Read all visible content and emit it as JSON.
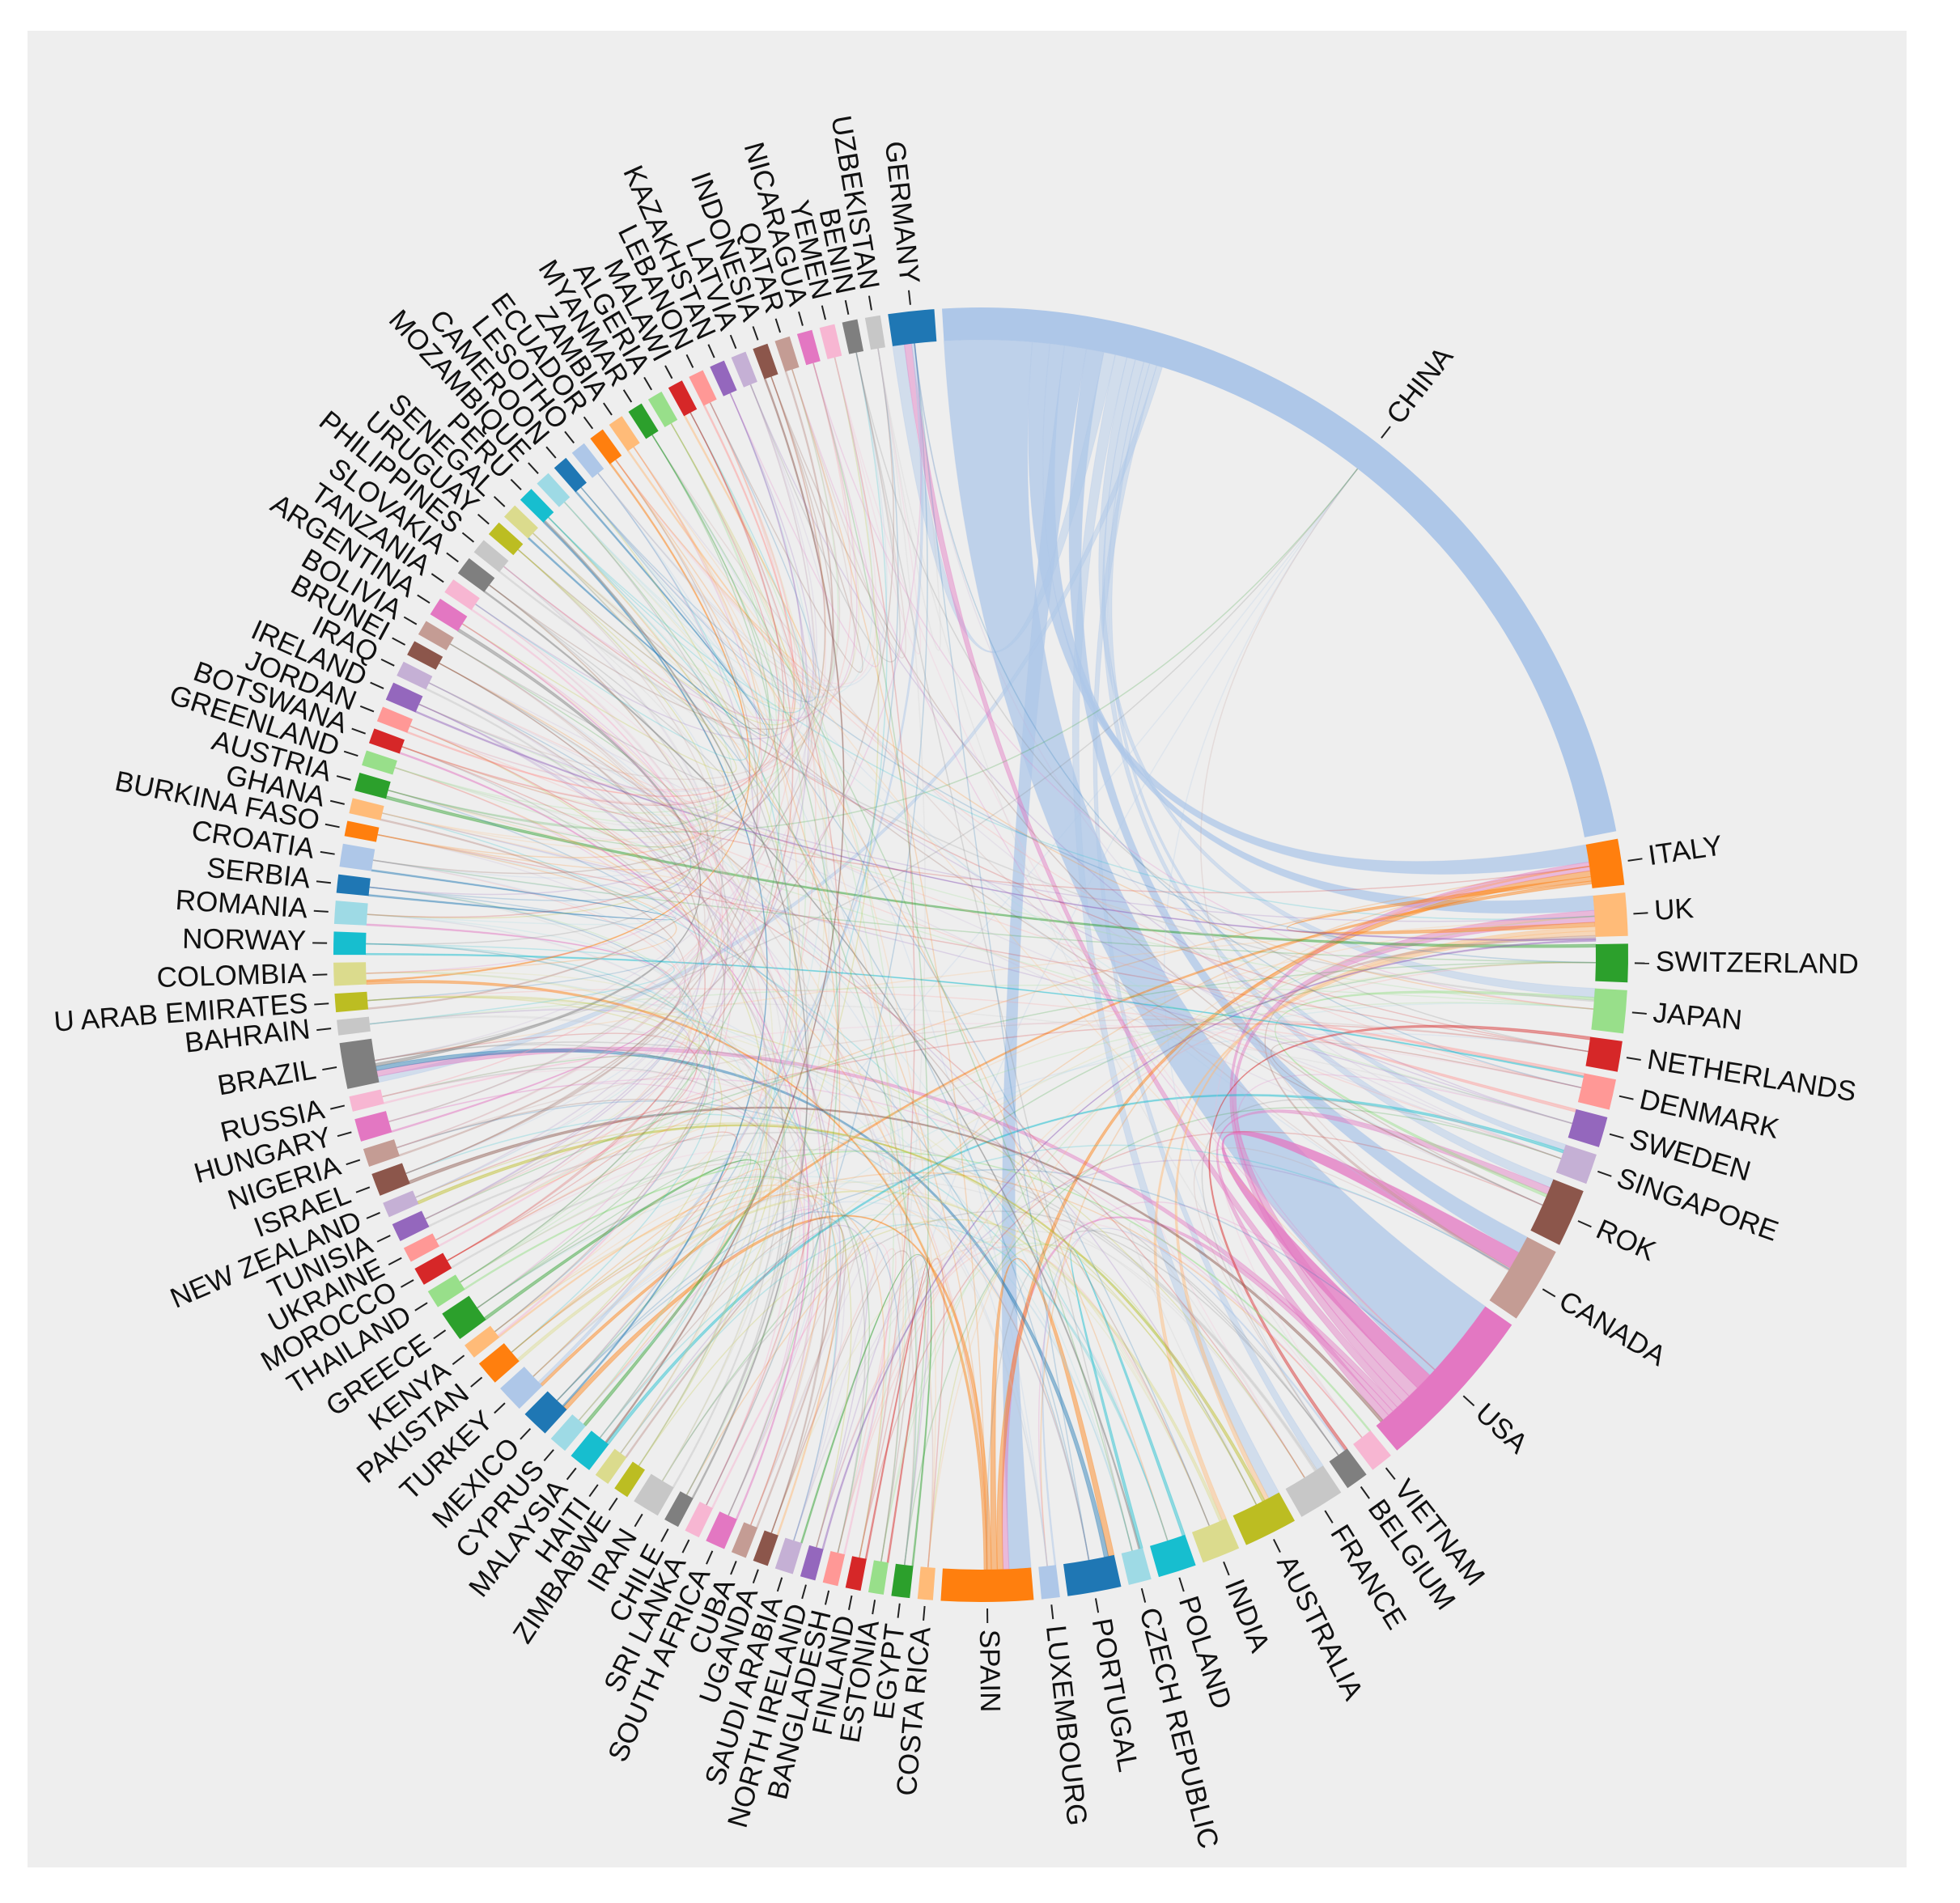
{
  "chart_data": {
    "type": "chord",
    "title": "",
    "direction": "clockwise starting at top",
    "nodes": [
      {
        "name": "CHINA",
        "value": 60,
        "color": "#aec7e8"
      },
      {
        "name": "ITALY",
        "value": 3.0,
        "color": "#ff7f0e"
      },
      {
        "name": "UK",
        "value": 2.8,
        "color": "#ffbb78"
      },
      {
        "name": "SWITZERLAND",
        "value": 2.5,
        "color": "#2ca02c"
      },
      {
        "name": "JAPAN",
        "value": 2.8,
        "color": "#98df8a"
      },
      {
        "name": "NETHERLANDS",
        "value": 2.0,
        "color": "#d62728"
      },
      {
        "name": "DENMARK",
        "value": 2.0,
        "color": "#ff9896"
      },
      {
        "name": "SWEDEN",
        "value": 2.0,
        "color": "#9467bd"
      },
      {
        "name": "SINGAPORE",
        "value": 2.0,
        "color": "#c5b0d5"
      },
      {
        "name": "ROK",
        "value": 3.8,
        "color": "#8c564b"
      },
      {
        "name": "CANADA",
        "value": 5.0,
        "color": "#c49c94"
      },
      {
        "name": "USA",
        "value": 11.0,
        "color": "#e377c2"
      },
      {
        "name": "VIETNAM",
        "value": 1.5,
        "color": "#f7b6d2"
      },
      {
        "name": "BELGIUM",
        "value": 1.5,
        "color": "#7f7f7f"
      },
      {
        "name": "FRANCE",
        "value": 3.0,
        "color": "#c7c7c7"
      },
      {
        "name": "AUSTRALIA",
        "value": 3.5,
        "color": "#bcbd22"
      },
      {
        "name": "INDIA",
        "value": 2.5,
        "color": "#dbdb8d"
      },
      {
        "name": "POLAND",
        "value": 2.5,
        "color": "#17becf"
      },
      {
        "name": "CZECH REPUBLIC",
        "value": 1.5,
        "color": "#9edae5"
      },
      {
        "name": "PORTUGAL",
        "value": 3.5,
        "color": "#1f77b4"
      },
      {
        "name": "LUXEMBOURG",
        "value": 1.2,
        "color": "#aec7e8"
      },
      {
        "name": "SPAIN",
        "value": 6.0,
        "color": "#ff7f0e"
      },
      {
        "name": "COSTA RICA",
        "value": 1.0,
        "color": "#ffbb78"
      },
      {
        "name": "EGYPT",
        "value": 1.2,
        "color": "#2ca02c"
      },
      {
        "name": "ESTONIA",
        "value": 1.0,
        "color": "#98df8a"
      },
      {
        "name": "FINLAND",
        "value": 1.0,
        "color": "#d62728"
      },
      {
        "name": "BANGLADESH",
        "value": 1.0,
        "color": "#ff9896"
      },
      {
        "name": "NORTH IRELAND",
        "value": 1.0,
        "color": "#9467bd"
      },
      {
        "name": "SAUDI ARABIA",
        "value": 1.2,
        "color": "#c5b0d5"
      },
      {
        "name": "UGANDA",
        "value": 1.0,
        "color": "#8c564b"
      },
      {
        "name": "CUBA",
        "value": 1.0,
        "color": "#c49c94"
      },
      {
        "name": "SOUTH AFRICA",
        "value": 1.3,
        "color": "#e377c2"
      },
      {
        "name": "SRI LANKA",
        "value": 1.0,
        "color": "#f7b6d2"
      },
      {
        "name": "CHILE",
        "value": 1.0,
        "color": "#7f7f7f"
      },
      {
        "name": "IRAN",
        "value": 1.8,
        "color": "#c7c7c7"
      },
      {
        "name": "ZIMBABWE",
        "value": 1.0,
        "color": "#bcbd22"
      },
      {
        "name": "HAITI",
        "value": 1.0,
        "color": "#dbdb8d"
      },
      {
        "name": "MALAYSIA",
        "value": 1.5,
        "color": "#17becf"
      },
      {
        "name": "CYPRUS",
        "value": 1.2,
        "color": "#9edae5"
      },
      {
        "name": "MEXICO",
        "value": 1.8,
        "color": "#1f77b4"
      },
      {
        "name": "TURKEY",
        "value": 1.8,
        "color": "#aec7e8"
      },
      {
        "name": "PAKISTAN",
        "value": 1.6,
        "color": "#ff7f0e"
      },
      {
        "name": "KENYA",
        "value": 1.0,
        "color": "#ffbb78"
      },
      {
        "name": "GREECE",
        "value": 2.0,
        "color": "#2ca02c"
      },
      {
        "name": "THAILAND",
        "value": 1.2,
        "color": "#98df8a"
      },
      {
        "name": "MOROCCO",
        "value": 1.2,
        "color": "#d62728"
      },
      {
        "name": "UKRAINE",
        "value": 1.0,
        "color": "#ff9896"
      },
      {
        "name": "TUNISIA",
        "value": 1.2,
        "color": "#9467bd"
      },
      {
        "name": "NEW ZEALAND",
        "value": 1.0,
        "color": "#c5b0d5"
      },
      {
        "name": "ISRAEL",
        "value": 1.5,
        "color": "#8c564b"
      },
      {
        "name": "NIGERIA",
        "value": 1.2,
        "color": "#c49c94"
      },
      {
        "name": "HUNGARY",
        "value": 1.5,
        "color": "#e377c2"
      },
      {
        "name": "RUSSIA",
        "value": 1.0,
        "color": "#f7b6d2"
      },
      {
        "name": "BRAZIL",
        "value": 3.0,
        "color": "#7f7f7f"
      },
      {
        "name": "BAHRAIN",
        "value": 1.0,
        "color": "#c7c7c7"
      },
      {
        "name": "U ARAB EMIRATES",
        "value": 1.2,
        "color": "#bcbd22"
      },
      {
        "name": "COLOMBIA",
        "value": 1.5,
        "color": "#dbdb8d"
      },
      {
        "name": "NORWAY",
        "value": 1.5,
        "color": "#17becf"
      },
      {
        "name": "ROMANIA",
        "value": 1.5,
        "color": "#9edae5"
      },
      {
        "name": "SERBIA",
        "value": 1.2,
        "color": "#1f77b4"
      },
      {
        "name": "CROATIA",
        "value": 1.5,
        "color": "#aec7e8"
      },
      {
        "name": "BURKINA FASO",
        "value": 1.0,
        "color": "#ff7f0e"
      },
      {
        "name": "GHANA",
        "value": 1.0,
        "color": "#ffbb78"
      },
      {
        "name": "AUSTRIA",
        "value": 1.2,
        "color": "#2ca02c"
      },
      {
        "name": "GREENLAND",
        "value": 1.0,
        "color": "#98df8a"
      },
      {
        "name": "BOTSWANA",
        "value": 1.0,
        "color": "#d62728"
      },
      {
        "name": "JORDAN",
        "value": 1.0,
        "color": "#ff9896"
      },
      {
        "name": "IRELAND",
        "value": 1.2,
        "color": "#9467bd"
      },
      {
        "name": "IRAQ",
        "value": 1.0,
        "color": "#c5b0d5"
      },
      {
        "name": "BRUNEI",
        "value": 1.0,
        "color": "#8c564b"
      },
      {
        "name": "BOLIVIA",
        "value": 1.0,
        "color": "#c49c94"
      },
      {
        "name": "ARGENTINA",
        "value": 1.2,
        "color": "#e377c2"
      },
      {
        "name": "TANZANIA",
        "value": 1.0,
        "color": "#f7b6d2"
      },
      {
        "name": "SLOVAKIA",
        "value": 1.2,
        "color": "#7f7f7f"
      },
      {
        "name": "PHILIPPINES",
        "value": 1.0,
        "color": "#c7c7c7"
      },
      {
        "name": "URUGUAY",
        "value": 1.0,
        "color": "#bcbd22"
      },
      {
        "name": "SENEGAL",
        "value": 1.0,
        "color": "#dbdb8d"
      },
      {
        "name": "PERU",
        "value": 1.0,
        "color": "#17becf"
      },
      {
        "name": "MOZAMBIQUE",
        "value": 1.0,
        "color": "#9edae5"
      },
      {
        "name": "CAMEROON",
        "value": 1.0,
        "color": "#1f77b4"
      },
      {
        "name": "LESOTHO",
        "value": 1.0,
        "color": "#aec7e8"
      },
      {
        "name": "ECUADOR",
        "value": 1.0,
        "color": "#ff7f0e"
      },
      {
        "name": "ZAMBIA",
        "value": 1.0,
        "color": "#ffbb78"
      },
      {
        "name": "MYANMAR",
        "value": 1.0,
        "color": "#2ca02c"
      },
      {
        "name": "ALGERIA",
        "value": 1.0,
        "color": "#98df8a"
      },
      {
        "name": "MALAWI",
        "value": 1.0,
        "color": "#d62728"
      },
      {
        "name": "LEBANON",
        "value": 1.0,
        "color": "#ff9896"
      },
      {
        "name": "KAZAKHSTAN",
        "value": 1.0,
        "color": "#9467bd"
      },
      {
        "name": "LATVIA",
        "value": 1.0,
        "color": "#c5b0d5"
      },
      {
        "name": "INDONESIA",
        "value": 1.0,
        "color": "#8c564b"
      },
      {
        "name": "QATAR",
        "value": 1.0,
        "color": "#c49c94"
      },
      {
        "name": "NICARAGUA",
        "value": 1.0,
        "color": "#e377c2"
      },
      {
        "name": "YEMEN",
        "value": 1.0,
        "color": "#f7b6d2"
      },
      {
        "name": "BENIN",
        "value": 1.0,
        "color": "#7f7f7f"
      },
      {
        "name": "UZBEKISTAN",
        "value": 1.0,
        "color": "#c7c7c7"
      },
      {
        "name": "GERMANY",
        "value": 3.0,
        "color": "#1f77b4"
      }
    ],
    "links": [
      {
        "source": "CHINA",
        "target": "USA",
        "value": 6
      },
      {
        "source": "CHINA",
        "target": "ITALY",
        "value": 1.2
      },
      {
        "source": "CHINA",
        "target": "UK",
        "value": 1
      },
      {
        "source": "CHINA",
        "target": "SPAIN",
        "value": 1.5
      },
      {
        "source": "CHINA",
        "target": "CANADA",
        "value": 1.2
      },
      {
        "source": "CHINA",
        "target": "GERMANY",
        "value": 0.8
      },
      {
        "source": "CHINA",
        "target": "AUSTRALIA",
        "value": 0.8
      },
      {
        "source": "CHINA",
        "target": "JAPAN",
        "value": 0.6
      },
      {
        "source": "CHINA",
        "target": "ROK",
        "value": 0.6
      },
      {
        "source": "CHINA",
        "target": "SINGAPORE",
        "value": 0.4
      },
      {
        "source": "CHINA",
        "target": "FRANCE",
        "value": 0.5
      },
      {
        "source": "CHINA",
        "target": "BRAZIL",
        "value": 0.4
      },
      {
        "source": "USA",
        "target": "CANADA",
        "value": 1.2
      },
      {
        "source": "USA",
        "target": "UK",
        "value": 0.8
      },
      {
        "source": "USA",
        "target": "ITALY",
        "value": 0.6
      },
      {
        "source": "USA",
        "target": "GERMANY",
        "value": 0.5
      },
      {
        "source": "USA",
        "target": "BRAZIL",
        "value": 0.4
      },
      {
        "source": "USA",
        "target": "SPAIN",
        "value": 0.4
      },
      {
        "source": "USA",
        "target": "ROK",
        "value": 0.5
      },
      {
        "source": "ITALY",
        "target": "SPAIN",
        "value": 0.4
      },
      {
        "source": "ITALY",
        "target": "UK",
        "value": 0.3
      },
      {
        "source": "ITALY",
        "target": "TURKEY",
        "value": 0.2
      },
      {
        "source": "SPAIN",
        "target": "PORTUGAL",
        "value": 0.4
      },
      {
        "source": "SPAIN",
        "target": "MEXICO",
        "value": 0.3
      },
      {
        "source": "SPAIN",
        "target": "COLOMBIA",
        "value": 0.2
      },
      {
        "source": "PORTUGAL",
        "target": "BRAZIL",
        "value": 0.3
      },
      {
        "source": "UK",
        "target": "AUSTRALIA",
        "value": 0.3
      },
      {
        "source": "UK",
        "target": "INDIA",
        "value": 0.3
      },
      {
        "source": "AUSTRALIA",
        "target": "NEW ZEALAND",
        "value": 0.2
      },
      {
        "source": "GREECE",
        "target": "CYPRUS",
        "value": 0.2
      },
      {
        "source": "JAPAN",
        "target": "ROK",
        "value": 0.2
      },
      {
        "source": "INDIA",
        "target": "PAKISTAN",
        "value": 0.2
      },
      {
        "source": "IRAN",
        "target": "IRAQ",
        "value": 0.1
      },
      {
        "source": "SWITZERLAND",
        "target": "AUSTRIA",
        "value": 0.2
      },
      {
        "source": "NETHERLANDS",
        "target": "BELGIUM",
        "value": 0.2
      },
      {
        "source": "DENMARK",
        "target": "SWEDEN",
        "value": 0.2
      },
      {
        "source": "POLAND",
        "target": "CZECH REPUBLIC",
        "value": 0.2
      },
      {
        "source": "FRANCE",
        "target": "TUNISIA",
        "value": 0.1
      },
      {
        "source": "FRANCE",
        "target": "MOROCCO",
        "value": 0.1
      },
      {
        "source": "BRAZIL",
        "target": "ARGENTINA",
        "value": 0.2
      },
      {
        "source": "MEXICO",
        "target": "PERU",
        "value": 0.1
      },
      {
        "source": "TURKEY",
        "target": "GERMANY",
        "value": 0.2
      },
      {
        "source": "KENYA",
        "target": "UGANDA",
        "value": 0.1
      },
      {
        "source": "SOUTH AFRICA",
        "target": "BOTSWANA",
        "value": 0.1
      },
      {
        "source": "MALAYSIA",
        "target": "SINGAPORE",
        "value": 0.2
      },
      {
        "source": "THAILAND",
        "target": "VIETNAM",
        "value": 0.1
      },
      {
        "source": "CANADA",
        "target": "UK",
        "value": 0.2
      },
      {
        "source": "EGYPT",
        "target": "SAUDI ARABIA",
        "value": 0.1
      },
      {
        "source": "ISRAEL",
        "target": "USA",
        "value": 0.2
      },
      {
        "source": "RUSSIA",
        "target": "UKRAINE",
        "value": 0.1
      },
      {
        "source": "NORWAY",
        "target": "DENMARK",
        "value": 0.1
      },
      {
        "source": "HUNGARY",
        "target": "ROMANIA",
        "value": 0.1
      },
      {
        "source": "SERBIA",
        "target": "CROATIA",
        "value": 0.1
      },
      {
        "source": "IRELAND",
        "target": "UK",
        "value": 0.1
      },
      {
        "source": "CHILE",
        "target": "PERU",
        "value": 0.1
      },
      {
        "source": "QATAR",
        "target": "U ARAB EMIRATES",
        "value": 0.1
      },
      {
        "source": "NIGERIA",
        "target": "GHANA",
        "value": 0.1
      },
      {
        "source": "FINLAND",
        "target": "ESTONIA",
        "value": 0.1
      },
      {
        "source": "INDONESIA",
        "target": "MALAYSIA",
        "value": 0.1
      },
      {
        "source": "JORDAN",
        "target": "LEBANON",
        "value": 0.1
      },
      {
        "source": "SRI LANKA",
        "target": "BANGLADESH",
        "value": 0.1
      },
      {
        "source": "LUXEMBOURG",
        "target": "BELGIUM",
        "value": 0.1
      },
      {
        "source": "SLOVAKIA",
        "target": "CZECH REPUBLIC",
        "value": 0.1
      },
      {
        "source": "TANZANIA",
        "target": "KENYA",
        "value": 0.1
      },
      {
        "source": "ECUADOR",
        "target": "COLOMBIA",
        "value": 0.1
      },
      {
        "source": "ZAMBIA",
        "target": "MALAWI",
        "value": 0.1
      },
      {
        "source": "CAMEROON",
        "target": "SENEGAL",
        "value": 0.1
      },
      {
        "source": "CUBA",
        "target": "HAITI",
        "value": 0.1
      },
      {
        "source": "PHILIPPINES",
        "target": "JAPAN",
        "value": 0.1
      },
      {
        "source": "NORTH IRELAND",
        "target": "UK",
        "value": 0.1
      }
    ]
  }
}
